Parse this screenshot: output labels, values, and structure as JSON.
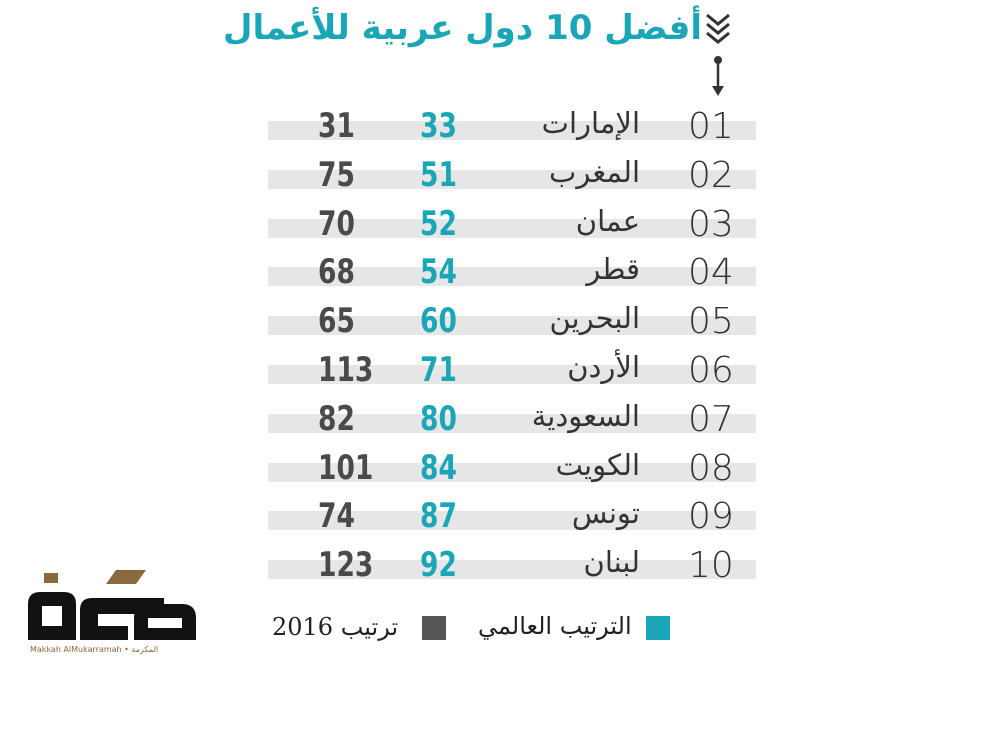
{
  "title": "أفضل 10 دول عربية للأعمال",
  "chart_data": {
    "type": "table",
    "title": "أفضل 10 دول عربية للأعمال",
    "columns": [
      "",
      "",
      "",
      ""
    ],
    "rows": [
      {
        "rank": "01",
        "country": "الإمارات",
        "global_rank": 33,
        "rank_2016": 31
      },
      {
        "rank": "02",
        "country": "المغرب",
        "global_rank": 51,
        "rank_2016": 75
      },
      {
        "rank": "03",
        "country": "عمان",
        "global_rank": 52,
        "rank_2016": 70
      },
      {
        "rank": "04",
        "country": "قطر",
        "global_rank": 54,
        "rank_2016": 68
      },
      {
        "rank": "05",
        "country": "البحرين",
        "global_rank": 60,
        "rank_2016": 65
      },
      {
        "rank": "06",
        "country": "الأردن",
        "global_rank": 71,
        "rank_2016": 113
      },
      {
        "rank": "07",
        "country": "السعودية",
        "global_rank": 80,
        "rank_2016": 82
      },
      {
        "rank": "08",
        "country": "الكويت",
        "global_rank": 84,
        "rank_2016": 101
      },
      {
        "rank": "09",
        "country": "تونس",
        "global_rank": 87,
        "rank_2016": 74
      },
      {
        "rank": "10",
        "country": "لبنان",
        "global_rank": 92,
        "rank_2016": 123
      }
    ],
    "legend": [
      {
        "label": "الترتيب العالمي",
        "color": "#1aa6b7"
      },
      {
        "label": "ترتيب 2016",
        "color": "#555555"
      }
    ]
  },
  "logo": {
    "caption": "Makkah AlMukarramah • المكرمة"
  },
  "colors": {
    "accent": "#1aa6b7",
    "dark": "#555555",
    "row_band": "#e6e6e6"
  }
}
